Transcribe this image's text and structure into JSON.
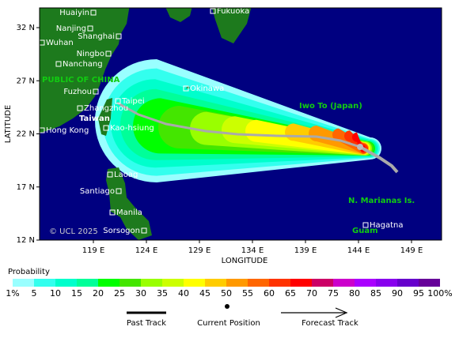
{
  "axes": {
    "y_label": "LATITUDE",
    "x_label": "LONGITUDE",
    "lat_ticks": [
      "32 N",
      "27 N",
      "22 N",
      "17 N",
      "12 N"
    ],
    "lon_ticks": [
      "119 E",
      "124 E",
      "129 E",
      "134 E",
      "139 E",
      "144 E",
      "149 E"
    ]
  },
  "places": [
    "Huaiyin",
    "Fukuoka",
    "Nanjing",
    "Shanghai",
    "Wuhan",
    "Ningbo",
    "Nanchang",
    "Fuzhou",
    "Taipei",
    "Okinawa",
    "Zhangzhou",
    "Kao-hsiung",
    "Hong Kong",
    "Laoag",
    "Santiago",
    "Manila",
    "Sorsogon",
    "Hagatna"
  ],
  "regions": [
    "PUBLIC OF CHINA",
    "Taiwan",
    "Iwo To (Japan)",
    "N. Marianas Is.",
    "Guam"
  ],
  "copyright": "© UCL 2025",
  "legend": {
    "title": "Probability",
    "labels": [
      "1%",
      "5",
      "10",
      "15",
      "20",
      "25",
      "30",
      "35",
      "40",
      "45",
      "50",
      "55",
      "60",
      "65",
      "70",
      "75",
      "80",
      "85",
      "90",
      "95",
      "100%"
    ],
    "colors": [
      "#99ffff",
      "#33ffee",
      "#00ffcc",
      "#00ff99",
      "#00ff00",
      "#44e600",
      "#99ff00",
      "#ccff00",
      "#ffff00",
      "#ffcc00",
      "#ff9900",
      "#ff6600",
      "#ff3300",
      "#ff0000",
      "#cc0066",
      "#cc00cc",
      "#aa00ff",
      "#8800ee",
      "#6600cc",
      "#660099"
    ]
  },
  "key": {
    "past": "Past Track",
    "current": "Current Position",
    "forecast": "Forecast Track"
  }
}
